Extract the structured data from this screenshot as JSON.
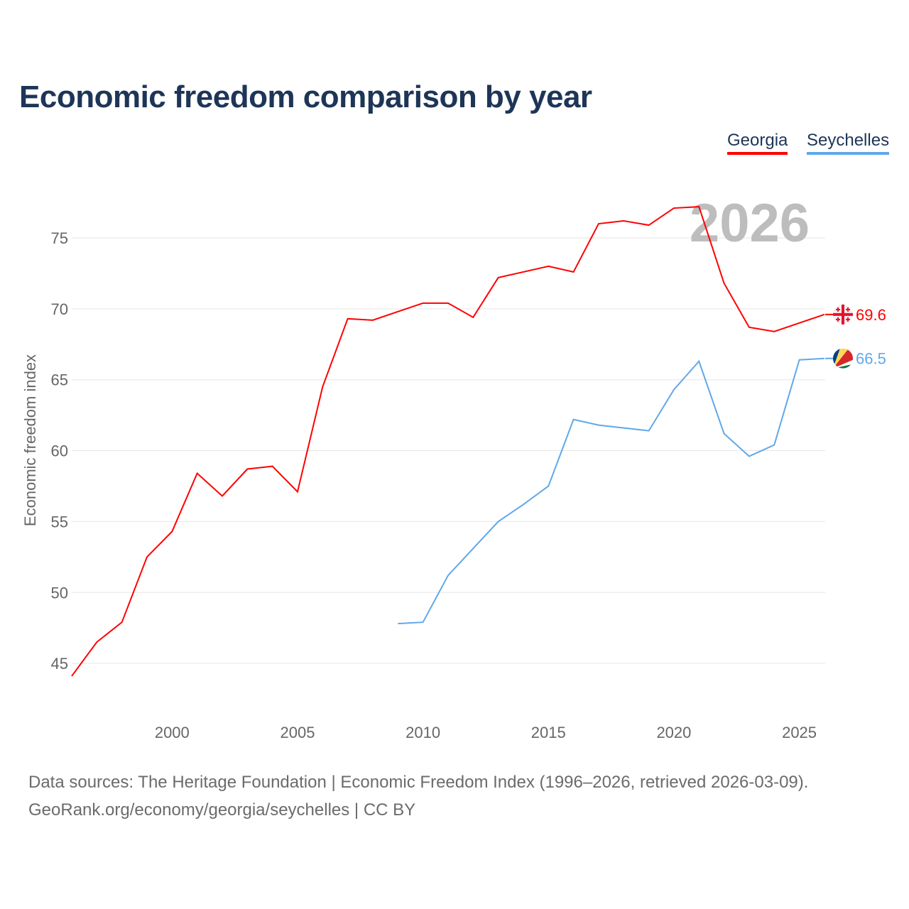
{
  "chart_data": {
    "type": "line",
    "title": "Economic freedom comparison by year",
    "ylabel": "Economic freedom index",
    "xlabel": "",
    "ylim": [
      41.5,
      78.5
    ],
    "xlim": [
      1996,
      2026
    ],
    "yticks": [
      45,
      50,
      55,
      60,
      65,
      70,
      75
    ],
    "xticks": [
      2000,
      2005,
      2010,
      2015,
      2020,
      2025
    ],
    "grid": true,
    "legend_position": "top-right",
    "watermark_year": "2026",
    "series": [
      {
        "name": "Georgia",
        "color": "#ff0000",
        "end_label": "69.6",
        "x": [
          1996,
          1997,
          1998,
          1999,
          2000,
          2001,
          2002,
          2003,
          2004,
          2005,
          2006,
          2007,
          2008,
          2009,
          2010,
          2011,
          2012,
          2013,
          2014,
          2015,
          2016,
          2017,
          2018,
          2019,
          2020,
          2021,
          2022,
          2023,
          2024,
          2025,
          2026
        ],
        "values": [
          44.1,
          46.5,
          47.9,
          52.5,
          54.3,
          58.4,
          56.8,
          58.7,
          58.9,
          57.1,
          64.5,
          69.3,
          69.2,
          69.8,
          70.4,
          70.4,
          69.4,
          72.2,
          72.6,
          73.0,
          72.6,
          76.0,
          76.2,
          75.9,
          77.1,
          77.2,
          71.8,
          68.7,
          68.4,
          69.0,
          69.6
        ]
      },
      {
        "name": "Seychelles",
        "color": "#5fa8ea",
        "end_label": "66.5",
        "x": [
          2009,
          2010,
          2011,
          2012,
          2013,
          2014,
          2015,
          2016,
          2017,
          2018,
          2019,
          2020,
          2021,
          2022,
          2023,
          2024,
          2025,
          2026
        ],
        "values": [
          47.8,
          47.9,
          51.2,
          53.1,
          55.0,
          56.2,
          57.5,
          62.2,
          61.8,
          61.6,
          61.4,
          64.3,
          66.3,
          61.2,
          59.6,
          60.4,
          66.4,
          66.5
        ]
      }
    ]
  },
  "footer": {
    "line1": "Data sources: The Heritage Foundation | Economic Freedom Index (1996–2026, retrieved 2026-03-09).",
    "line2": "GeoRank.org/economy/georgia/seychelles | CC BY"
  }
}
